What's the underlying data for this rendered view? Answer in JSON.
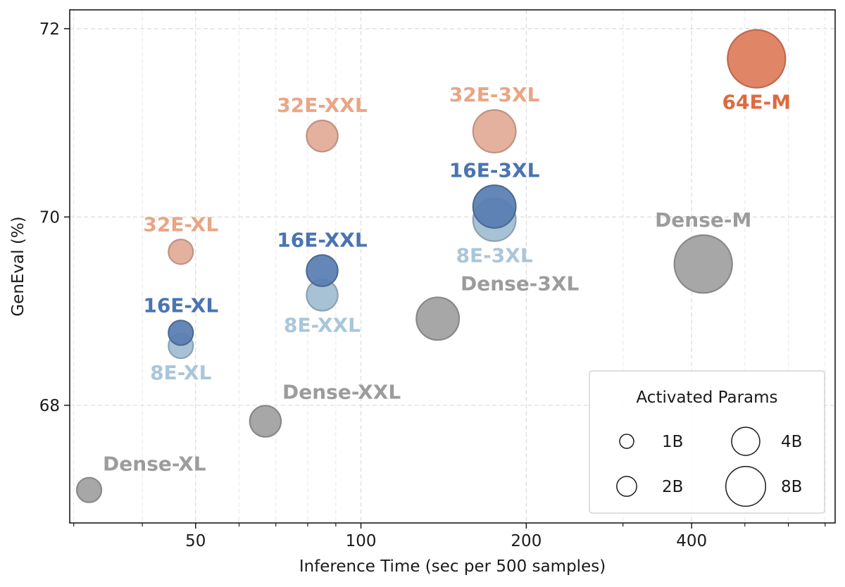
{
  "chart_data": {
    "type": "scatter",
    "title": "",
    "xlabel": "Inference Time (sec per 500 samples)",
    "ylabel": "GenEval (%)",
    "x_scale": "log",
    "xlim": [
      29.5,
      730
    ],
    "ylim": [
      66.75,
      72.2
    ],
    "x_ticks": [
      50,
      100,
      200,
      400
    ],
    "x_tick_labels": [
      "50",
      "100",
      "200",
      "400"
    ],
    "y_ticks": [
      68,
      70,
      72
    ],
    "y_tick_labels": [
      "68",
      "70",
      "72"
    ],
    "grid": true,
    "point_size_encoding": "Activated Params",
    "colors": {
      "dense": "#a6a6a6",
      "e8": "#a8c5d9",
      "e16": "#5b82b8",
      "e32": "#eab29c",
      "e64": "#e7805e",
      "label_dense": "#9c9c9c",
      "label_e8": "#a9c6da",
      "label_e16": "#4a74b0",
      "label_e32": "#e9a584",
      "label_e64": "#de6a3f"
    },
    "points": [
      {
        "label": "Dense-XL",
        "x": 32,
        "y": 67.1,
        "params_b": 1,
        "group": "dense",
        "label_anchor": "above-right"
      },
      {
        "label": "Dense-XXL",
        "x": 67,
        "y": 67.83,
        "params_b": 1.6,
        "group": "dense",
        "label_anchor": "above-right"
      },
      {
        "label": "Dense-3XL",
        "x": 138,
        "y": 68.92,
        "params_b": 3,
        "group": "dense",
        "label_anchor": "above-right"
      },
      {
        "label": "Dense-M",
        "x": 420,
        "y": 69.5,
        "params_b": 5.5,
        "group": "dense",
        "label_anchor": "above"
      },
      {
        "label": "8E-XL",
        "x": 47,
        "y": 68.63,
        "params_b": 1,
        "group": "e8",
        "label_anchor": "below"
      },
      {
        "label": "8E-XXL",
        "x": 85,
        "y": 69.17,
        "params_b": 1.6,
        "group": "e8",
        "label_anchor": "below"
      },
      {
        "label": "8E-3XL",
        "x": 175,
        "y": 69.97,
        "params_b": 3,
        "group": "e8",
        "label_anchor": "below"
      },
      {
        "label": "16E-XL",
        "x": 47,
        "y": 68.77,
        "params_b": 1,
        "group": "e16",
        "label_anchor": "above"
      },
      {
        "label": "16E-XXL",
        "x": 85,
        "y": 69.43,
        "params_b": 1.6,
        "group": "e16",
        "label_anchor": "above"
      },
      {
        "label": "16E-3XL",
        "x": 175,
        "y": 70.11,
        "params_b": 3,
        "group": "e16",
        "label_anchor": "above"
      },
      {
        "label": "32E-XL",
        "x": 47,
        "y": 69.63,
        "params_b": 1,
        "group": "e32",
        "label_anchor": "above"
      },
      {
        "label": "32E-XXL",
        "x": 85,
        "y": 70.86,
        "params_b": 1.6,
        "group": "e32",
        "label_anchor": "above"
      },
      {
        "label": "32E-3XL",
        "x": 175,
        "y": 70.91,
        "params_b": 3,
        "group": "e32",
        "label_anchor": "above"
      },
      {
        "label": "64E-M",
        "x": 525,
        "y": 71.68,
        "params_b": 5.5,
        "group": "e64",
        "label_anchor": "below"
      }
    ],
    "legend": {
      "title": "Activated Params",
      "placement": "bottom-right",
      "entries": [
        {
          "label": "1B",
          "params_b": 1
        },
        {
          "label": "4B",
          "params_b": 4
        },
        {
          "label": "2B",
          "params_b": 2
        },
        {
          "label": "8B",
          "params_b": 8
        }
      ]
    }
  }
}
